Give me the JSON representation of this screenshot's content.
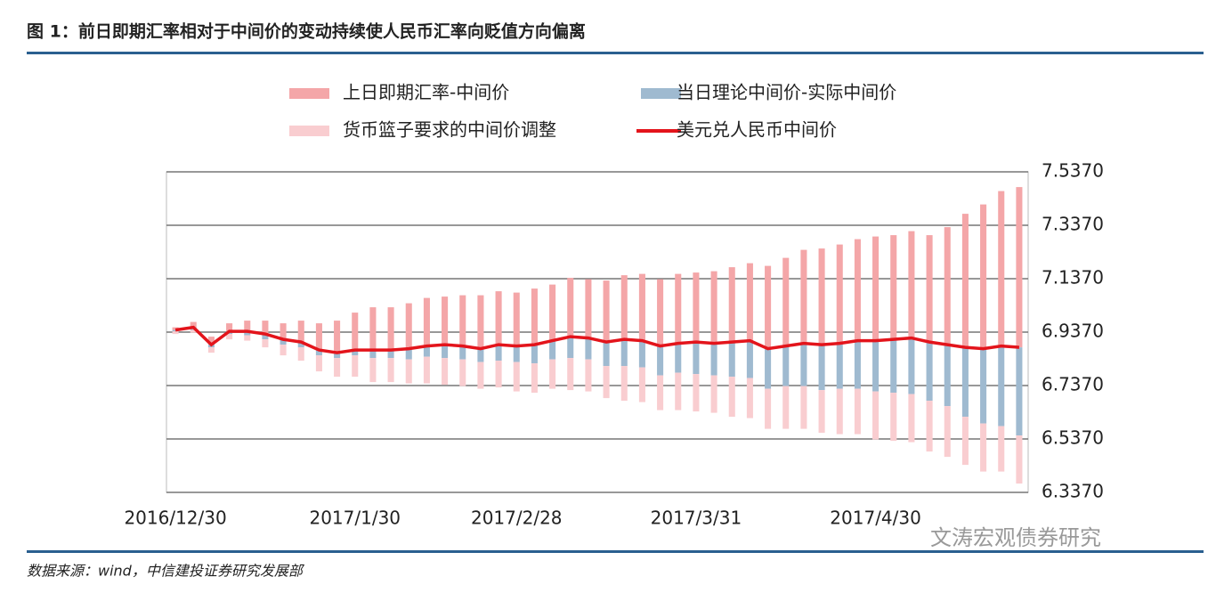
{
  "chart_data": {
    "type": "bar",
    "title": "图 1：前日即期汇率相对于中间价的变动持续使人民币汇率向贬值方向偏离",
    "categories": [
      "2016/12/30",
      null,
      null,
      null,
      null,
      null,
      null,
      null,
      null,
      null,
      "2017/1/30",
      null,
      null,
      null,
      null,
      null,
      null,
      null,
      null,
      "2017/2/28",
      null,
      null,
      null,
      null,
      null,
      null,
      null,
      null,
      null,
      "2017/3/31",
      null,
      null,
      null,
      null,
      null,
      null,
      null,
      null,
      null,
      "2017/4/30",
      null,
      null,
      null,
      null,
      null,
      null,
      null,
      null
    ],
    "series": [
      {
        "name": "上日即期汇率-中间价",
        "type": "bar",
        "color": "#f4a6a8",
        "values": [
          0.01,
          0.02,
          0.03,
          0.03,
          0.04,
          0.05,
          0.06,
          0.08,
          0.1,
          0.12,
          0.14,
          0.16,
          0.16,
          0.17,
          0.18,
          0.18,
          0.19,
          0.2,
          0.2,
          0.2,
          0.21,
          0.21,
          0.22,
          0.22,
          0.23,
          0.24,
          0.25,
          0.25,
          0.26,
          0.26,
          0.27,
          0.28,
          0.29,
          0.31,
          0.33,
          0.35,
          0.36,
          0.37,
          0.38,
          0.39,
          0.39,
          0.4,
          0.4,
          0.44,
          0.5,
          0.54,
          0.58,
          0.6
        ]
      },
      {
        "name": "当日理论中间价-实际中间价",
        "type": "bar",
        "color": "#9fbad0",
        "values": [
          -0.005,
          -0.01,
          -0.01,
          -0.01,
          -0.015,
          -0.02,
          -0.02,
          -0.02,
          -0.02,
          -0.02,
          -0.02,
          -0.03,
          -0.03,
          -0.04,
          -0.04,
          -0.05,
          -0.05,
          -0.05,
          -0.06,
          -0.06,
          -0.07,
          -0.07,
          -0.08,
          -0.08,
          -0.09,
          -0.1,
          -0.1,
          -0.11,
          -0.11,
          -0.12,
          -0.12,
          -0.13,
          -0.14,
          -0.15,
          -0.15,
          -0.16,
          -0.17,
          -0.17,
          -0.18,
          -0.19,
          -0.2,
          -0.21,
          -0.22,
          -0.23,
          -0.26,
          -0.28,
          -0.3,
          -0.33
        ]
      },
      {
        "name": "货币篮子要求的中间价调整",
        "type": "bar",
        "color": "#f9cdd0",
        "values": [
          -0.01,
          -0.01,
          -0.02,
          -0.02,
          -0.02,
          -0.03,
          -0.04,
          -0.05,
          -0.06,
          -0.07,
          -0.08,
          -0.09,
          -0.09,
          -0.09,
          -0.1,
          -0.1,
          -0.1,
          -0.1,
          -0.1,
          -0.11,
          -0.11,
          -0.11,
          -0.12,
          -0.12,
          -0.12,
          -0.13,
          -0.13,
          -0.13,
          -0.14,
          -0.14,
          -0.14,
          -0.15,
          -0.15,
          -0.15,
          -0.16,
          -0.16,
          -0.16,
          -0.17,
          -0.17,
          -0.18,
          -0.18,
          -0.18,
          -0.19,
          -0.19,
          -0.18,
          -0.18,
          -0.17,
          -0.18
        ]
      },
      {
        "name": "美元兑人民币中间价",
        "type": "line",
        "color": "#e3141b",
        "values": [
          6.945,
          6.955,
          6.89,
          6.94,
          6.94,
          6.93,
          6.91,
          6.9,
          6.87,
          6.86,
          6.87,
          6.87,
          6.87,
          6.875,
          6.885,
          6.89,
          6.885,
          6.875,
          6.89,
          6.885,
          6.89,
          6.905,
          6.92,
          6.915,
          6.9,
          6.91,
          6.905,
          6.885,
          6.895,
          6.9,
          6.895,
          6.9,
          6.905,
          6.875,
          6.885,
          6.895,
          6.89,
          6.895,
          6.905,
          6.905,
          6.91,
          6.915,
          6.9,
          6.89,
          6.88,
          6.875,
          6.885,
          6.88
        ]
      }
    ],
    "ylim": [
      6.337,
      7.537
    ],
    "yticks": [
      {
        "value": 7.537,
        "label": "7.5370"
      },
      {
        "value": 7.337,
        "label": "7.3370"
      },
      {
        "value": 7.137,
        "label": "7.1370"
      },
      {
        "value": 6.937,
        "label": "6.9370"
      },
      {
        "value": 6.737,
        "label": "6.7370"
      },
      {
        "value": 6.537,
        "label": "6.5370"
      },
      {
        "value": 6.337,
        "label": "6.3370"
      }
    ],
    "grid": true
  },
  "source": "数据来源：wind，中信建投证券研究发展部",
  "watermark": "文涛宏观债券研究"
}
